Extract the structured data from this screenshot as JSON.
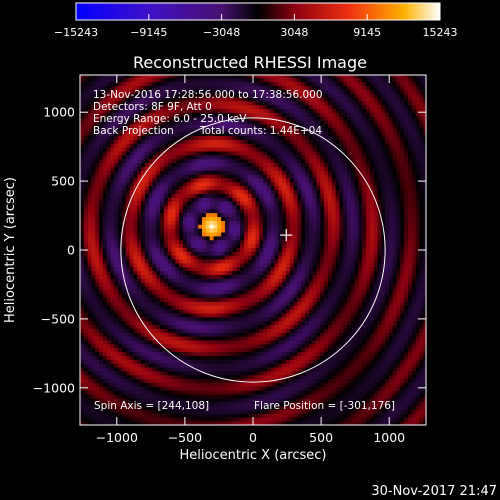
{
  "chart_data": {
    "type": "heatmap",
    "title": "Reconstructed RHESSI Image",
    "xlabel": "Heliocentric X (arcsec)",
    "ylabel": "Heliocentric Y (arcsec)",
    "xlim": [
      -1270,
      1270
    ],
    "ylim": [
      -1270,
      1270
    ],
    "x_ticks": [
      -1000,
      -500,
      0,
      500,
      1000
    ],
    "y_ticks": [
      -1000,
      -500,
      0,
      500,
      1000
    ],
    "x_tick_labels": [
      "−1000",
      "−500",
      "0",
      "500",
      "1000"
    ],
    "y_tick_labels": [
      "−1000",
      "−500",
      "0",
      "500",
      "1000"
    ],
    "colorbar": {
      "min": -15243,
      "max": 15243,
      "ticks": [
        -15243,
        -9145,
        -3048,
        3048,
        9145,
        15243
      ],
      "tick_labels": [
        "−15243",
        "−9145",
        "−3048",
        "3048",
        "9145",
        "15243"
      ]
    },
    "source_center": [
      -301,
      176
    ],
    "spin_axis": [
      244,
      108
    ],
    "solar_disk": {
      "center": [
        0,
        0
      ],
      "radius_arcsec": 970
    },
    "pattern": "concentric alternating positive/negative lobes around source (back projection)",
    "annotations": [
      "13-Nov-2016 17:28:56.000 to 17:38:56.000",
      "Detectors: 8F 9F, Att 0",
      "Energy Range: 6.0 - 25.0 keV",
      "Back Projection",
      "Total counts: 1.44E+04",
      "Spin Axis = [244,108]",
      "Flare Position = [-301,176]"
    ]
  },
  "footer": {
    "timestamp": "30-Nov-2017 21:47"
  },
  "colors": {
    "background": "#000000",
    "text": "#ffffff",
    "limb": "#ffffff"
  }
}
